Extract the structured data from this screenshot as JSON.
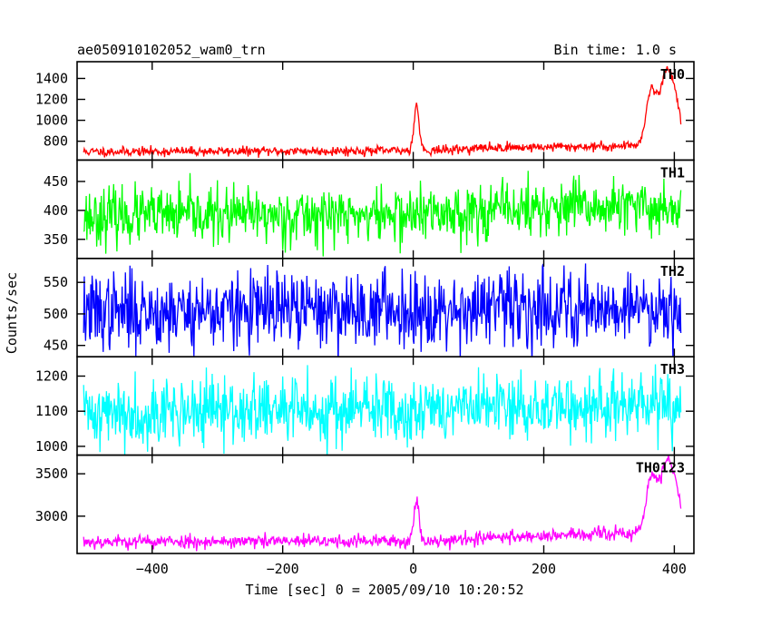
{
  "header": {
    "title": "ae050910102052_wam0_trn",
    "bin_time": "Bin time: 1.0 s"
  },
  "chart_data": {
    "type": "line",
    "xlabel": "Time [sec] 0 = 2005/09/10 10:20:52",
    "ylabel": "Counts/sec",
    "xlim": [
      -515,
      430
    ],
    "x_ticks": [
      -400,
      -200,
      0,
      200,
      400
    ],
    "x_tick_labels": [
      "−400",
      "−200",
      "0",
      "200",
      "400"
    ],
    "x_start": -505,
    "x_end": 410,
    "bin_time_sec": 1.0,
    "panels": [
      {
        "name": "TH0",
        "color": "#ff0000",
        "ylim": [
          620,
          1560
        ],
        "y_ticks": [
          800,
          1000,
          1200,
          1400
        ],
        "seed": 11,
        "baseline": [
          [
            -505,
            700
          ],
          [
            -200,
            705
          ],
          [
            -10,
            710
          ],
          [
            50,
            715
          ],
          [
            100,
            735
          ],
          [
            200,
            745
          ],
          [
            300,
            750
          ],
          [
            340,
            760
          ],
          [
            410,
            780
          ]
        ],
        "noise": 22,
        "features": [
          {
            "center": 5,
            "width": 4,
            "height": 430
          },
          {
            "center": 365,
            "width": 8,
            "height": 520
          },
          {
            "center": 388,
            "width": 9,
            "height": 680
          },
          {
            "center": 403,
            "width": 7,
            "height": 300
          }
        ]
      },
      {
        "name": "TH1",
        "color": "#00ff00",
        "ylim": [
          317,
          487
        ],
        "y_ticks": [
          350,
          400,
          450
        ],
        "seed": 23,
        "baseline": [
          [
            -505,
            390
          ],
          [
            0,
            392
          ],
          [
            150,
            402
          ],
          [
            410,
            405
          ]
        ],
        "noise": 24,
        "features": []
      },
      {
        "name": "TH2",
        "color": "#0000ff",
        "ylim": [
          432,
          588
        ],
        "y_ticks": [
          450,
          500,
          550
        ],
        "seed": 37,
        "baseline": [
          [
            -505,
            503
          ],
          [
            410,
            512
          ]
        ],
        "noise": 30,
        "features": []
      },
      {
        "name": "TH3",
        "color": "#00ffff",
        "ylim": [
          975,
          1255
        ],
        "y_ticks": [
          1000,
          1100,
          1200
        ],
        "seed": 41,
        "baseline": [
          [
            -505,
            1095
          ],
          [
            410,
            1115
          ]
        ],
        "noise": 48,
        "features": []
      },
      {
        "name": "TH0123",
        "color": "#ff00ff",
        "ylim": [
          2560,
          3720
        ],
        "y_ticks": [
          3000,
          3500
        ],
        "seed": 53,
        "baseline": [
          [
            -505,
            2700
          ],
          [
            -10,
            2705
          ],
          [
            50,
            2715
          ],
          [
            150,
            2760
          ],
          [
            300,
            2790
          ],
          [
            340,
            2800
          ],
          [
            410,
            2830
          ]
        ],
        "noise": 40,
        "features": [
          {
            "center": 5,
            "width": 4,
            "height": 470
          },
          {
            "center": 365,
            "width": 8,
            "height": 650
          },
          {
            "center": 388,
            "width": 9,
            "height": 820
          },
          {
            "center": 403,
            "width": 7,
            "height": 350
          }
        ]
      }
    ]
  }
}
